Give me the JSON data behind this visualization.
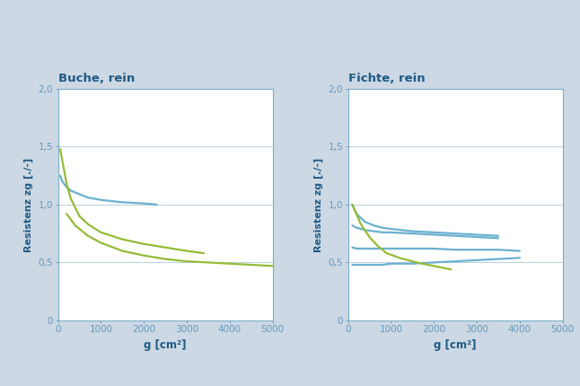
{
  "background_color": "#ccd8e4",
  "plot_bg_color": "#ffffff",
  "title1": "Buche, rein",
  "title2": "Fichte, rein",
  "ylabel": "Resistenz zg [./-]",
  "xlabel": "g [cm²]",
  "ylim": [
    0,
    2.0
  ],
  "xlim": [
    0,
    5000
  ],
  "yticks": [
    0,
    0.5,
    1.0,
    1.5,
    2.0
  ],
  "ytick_labels": [
    "0",
    "0,5",
    "1,0",
    "1,5",
    "2,0"
  ],
  "xticks": [
    0,
    1000,
    2000,
    3000,
    4000,
    5000
  ],
  "color_blue": "#6ab0d0",
  "color_green": "#93bc35",
  "title_color": "#1f5a85",
  "axis_color": "#7aafc8",
  "tick_color": "#6699bb",
  "label_color": "#1f5a85",
  "grid_color": "#b8cfdd",
  "buche_blue_x": [
    50,
    100,
    200,
    300,
    500,
    700,
    1000,
    1500,
    2000,
    2300
  ],
  "buche_blue_y": [
    1.25,
    1.2,
    1.15,
    1.12,
    1.09,
    1.06,
    1.04,
    1.02,
    1.01,
    1.0
  ],
  "buche_green1_x": [
    50,
    100,
    200,
    300,
    500,
    700,
    1000,
    1500,
    2000,
    2500,
    3000,
    3400
  ],
  "buche_green1_y": [
    1.48,
    1.38,
    1.18,
    1.05,
    0.9,
    0.83,
    0.76,
    0.7,
    0.66,
    0.63,
    0.6,
    0.58
  ],
  "buche_green2_x": [
    200,
    400,
    700,
    1000,
    1500,
    2000,
    2500,
    3000,
    3500,
    4000,
    4500,
    5000
  ],
  "buche_green2_y": [
    0.92,
    0.82,
    0.73,
    0.67,
    0.6,
    0.56,
    0.53,
    0.51,
    0.5,
    0.49,
    0.48,
    0.47
  ],
  "fichte_blue1_x": [
    100,
    200,
    400,
    600,
    800,
    1000,
    1500,
    2000,
    2500,
    3000,
    3500
  ],
  "fichte_blue1_y": [
    1.0,
    0.92,
    0.85,
    0.82,
    0.8,
    0.79,
    0.77,
    0.76,
    0.75,
    0.74,
    0.73
  ],
  "fichte_blue2_x": [
    100,
    200,
    400,
    600,
    800,
    1000,
    1500,
    2000,
    2500,
    3000,
    3500
  ],
  "fichte_blue2_y": [
    0.82,
    0.8,
    0.78,
    0.77,
    0.76,
    0.76,
    0.75,
    0.74,
    0.73,
    0.72,
    0.71
  ],
  "fichte_blue3_x": [
    100,
    200,
    400,
    600,
    800,
    1000,
    1500,
    2000,
    2500,
    3000,
    3500,
    4000
  ],
  "fichte_blue3_y": [
    0.63,
    0.62,
    0.62,
    0.62,
    0.62,
    0.62,
    0.62,
    0.62,
    0.61,
    0.61,
    0.61,
    0.6
  ],
  "fichte_blue4_x": [
    100,
    200,
    400,
    600,
    800,
    1000,
    1500,
    2000,
    2500,
    3000,
    3500,
    4000
  ],
  "fichte_blue4_y": [
    0.48,
    0.48,
    0.48,
    0.48,
    0.48,
    0.49,
    0.49,
    0.5,
    0.51,
    0.52,
    0.53,
    0.54
  ],
  "fichte_green_x": [
    100,
    300,
    500,
    700,
    900,
    1200,
    1600,
    2000,
    2400
  ],
  "fichte_green_y": [
    1.0,
    0.83,
    0.72,
    0.64,
    0.58,
    0.54,
    0.5,
    0.47,
    0.44
  ]
}
